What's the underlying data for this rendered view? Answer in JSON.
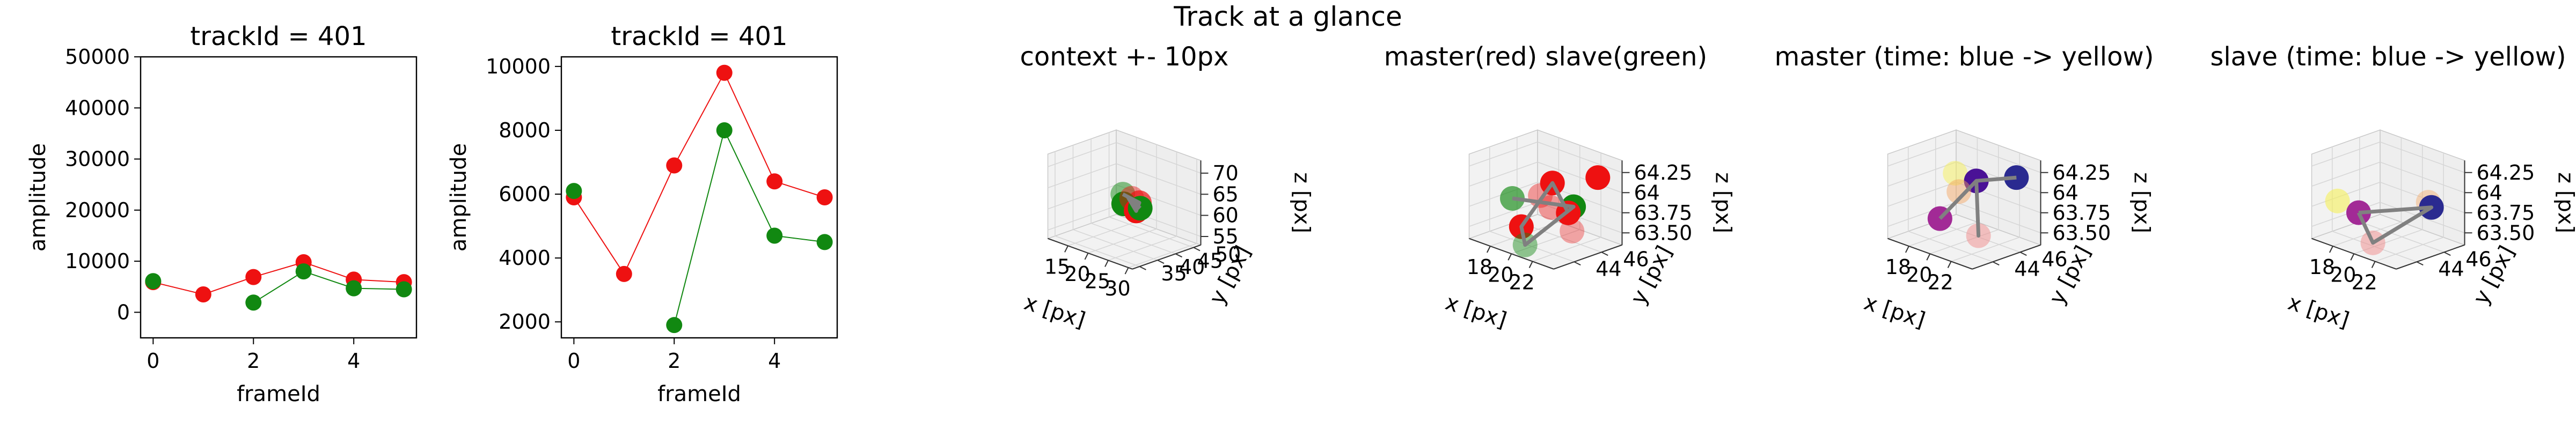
{
  "figure": {
    "suptitle": "Track at a glance"
  },
  "colors": {
    "master": "#ee1111",
    "slave": "#118811",
    "frame": "#000000",
    "pane": "#f2f2f2",
    "grid": "#d6d6d6",
    "path": "#808080"
  },
  "chart_data": [
    {
      "id": "p1",
      "type": "line",
      "title": "trackId = 401",
      "xlabel": "frameId",
      "ylabel": "amplitude",
      "xlim": [
        -0.25,
        5.25
      ],
      "ylim": [
        -5000,
        50000
      ],
      "xticks": [
        0,
        2,
        4
      ],
      "yticks": [
        0,
        10000,
        20000,
        30000,
        40000,
        50000
      ],
      "series": [
        {
          "color": "#ee1111",
          "x": [
            0,
            1,
            2,
            3,
            4,
            5
          ],
          "values": [
            5900,
            3500,
            6900,
            9800,
            6400,
            5900
          ]
        },
        {
          "color": "#118811",
          "x": [
            0,
            2,
            3,
            4,
            5
          ],
          "values": [
            6100,
            1900,
            8000,
            4700,
            4500
          ],
          "broken_after_first": true
        }
      ]
    },
    {
      "id": "p2",
      "type": "line",
      "title": "trackId = 401",
      "xlabel": "frameId",
      "ylabel": "amplitude",
      "xlim": [
        -0.25,
        5.25
      ],
      "ylim": [
        1500,
        10300
      ],
      "xticks": [
        0,
        2,
        4
      ],
      "yticks": [
        2000,
        4000,
        6000,
        8000,
        10000
      ],
      "series": [
        {
          "color": "#ee1111",
          "x": [
            0,
            1,
            2,
            3,
            4,
            5
          ],
          "values": [
            5900,
            3500,
            6900,
            9800,
            6400,
            5900
          ]
        },
        {
          "color": "#118811",
          "x": [
            0,
            2,
            3,
            4,
            5
          ],
          "values": [
            6100,
            1900,
            8000,
            4700,
            4500
          ],
          "broken_after_first": true
        }
      ]
    },
    {
      "id": "p3",
      "type": "scatter3d",
      "title": "context +- 10px",
      "xlabel": "x [px]",
      "ylabel": "y [px]",
      "zlabel": "z [px]",
      "xlim": [
        10,
        31
      ],
      "ylim": [
        33,
        52
      ],
      "zlim": [
        53,
        73
      ],
      "xticks": [
        15,
        20,
        25,
        30
      ],
      "yticks": [
        35,
        40,
        45,
        50
      ],
      "zticks": [
        55,
        60,
        65,
        70
      ],
      "points": [
        {
          "x": 17,
          "y": 46,
          "z": 62,
          "color": "#118811",
          "alpha": 0.5
        },
        {
          "x": 19,
          "y": 44,
          "z": 61,
          "color": "#118811",
          "alpha": 1.0
        },
        {
          "x": 21,
          "y": 44,
          "z": 63,
          "color": "#ee1111",
          "alpha": 0.45
        },
        {
          "x": 22,
          "y": 45,
          "z": 62,
          "color": "#ee1111",
          "alpha": 0.7
        },
        {
          "x": 23,
          "y": 43,
          "z": 61,
          "color": "#ee1111",
          "alpha": 1.0
        },
        {
          "x": 24,
          "y": 43,
          "z": 62,
          "color": "#118811",
          "alpha": 1.0
        }
      ],
      "path": [
        {
          "x": 17,
          "y": 46,
          "z": 62
        },
        {
          "x": 22,
          "y": 45,
          "z": 62
        },
        {
          "x": 23,
          "y": 43,
          "z": 61
        },
        {
          "x": 20,
          "y": 44,
          "z": 63
        },
        {
          "x": 24,
          "y": 43,
          "z": 62
        }
      ]
    },
    {
      "id": "p4",
      "type": "scatter3d",
      "title": "master(red) slave(green)",
      "xlabel": "x [px]",
      "ylabel": "y [px]",
      "zlabel": "z [px]",
      "xlim": [
        16,
        24
      ],
      "ylim": [
        42.5,
        47.5
      ],
      "zlim": [
        63.35,
        64.4
      ],
      "xticks": [
        18,
        20,
        22
      ],
      "yticks": [
        44,
        46
      ],
      "zticks": [
        63.5,
        63.75,
        64.0,
        64.25
      ],
      "points": [
        {
          "x": 17.5,
          "y": 44.5,
          "z": 63.8,
          "color": "#118811",
          "alpha": 0.65
        },
        {
          "x": 19.0,
          "y": 44.0,
          "z": 63.55,
          "color": "#ee1111",
          "alpha": 1.0
        },
        {
          "x": 19.5,
          "y": 45.0,
          "z": 63.9,
          "color": "#ee1111",
          "alpha": 0.4
        },
        {
          "x": 20.0,
          "y": 45.5,
          "z": 64.05,
          "color": "#ee1111",
          "alpha": 1.0
        },
        {
          "x": 20.5,
          "y": 45.0,
          "z": 63.8,
          "color": "#ee1111",
          "alpha": 0.4
        },
        {
          "x": 20.0,
          "y": 43.5,
          "z": 63.4,
          "color": "#118811",
          "alpha": 0.45
        },
        {
          "x": 22.0,
          "y": 45.5,
          "z": 63.85,
          "color": "#118811",
          "alpha": 1.0
        },
        {
          "x": 21.5,
          "y": 45.5,
          "z": 63.75,
          "color": "#ee1111",
          "alpha": 1.0
        },
        {
          "x": 22.5,
          "y": 45.0,
          "z": 63.6,
          "color": "#ee1111",
          "alpha": 0.35
        },
        {
          "x": 23.0,
          "y": 46.5,
          "z": 64.2,
          "color": "#ee1111",
          "alpha": 1.0
        }
      ],
      "path": [
        {
          "x": 17.5,
          "y": 44.5,
          "z": 63.8
        },
        {
          "x": 22.0,
          "y": 45.5,
          "z": 63.85
        },
        {
          "x": 20.0,
          "y": 43.5,
          "z": 63.4
        },
        {
          "x": 19.0,
          "y": 44.0,
          "z": 63.55
        },
        {
          "x": 20.0,
          "y": 45.5,
          "z": 64.05
        },
        {
          "x": 21.5,
          "y": 45.5,
          "z": 63.75
        }
      ]
    },
    {
      "id": "p5",
      "type": "scatter3d",
      "title": "master (time: blue -> yellow)",
      "xlabel": "x [px]",
      "ylabel": "y [px]",
      "zlabel": "z [px]",
      "xlim": [
        16,
        24
      ],
      "ylim": [
        42.5,
        47.5
      ],
      "zlim": [
        63.35,
        64.4
      ],
      "xticks": [
        18,
        20,
        22
      ],
      "yticks": [
        44,
        46
      ],
      "zticks": [
        63.5,
        63.75,
        64.0,
        64.25
      ],
      "points": [
        {
          "x": 18.5,
          "y": 45.5,
          "z": 64.1,
          "color": "#f5f05a",
          "alpha": 0.5
        },
        {
          "x": 19.5,
          "y": 45.0,
          "z": 63.95,
          "color": "#f5a25a",
          "alpha": 0.45
        },
        {
          "x": 19.0,
          "y": 44.0,
          "z": 63.65,
          "color": "#a22a96",
          "alpha": 1.0
        },
        {
          "x": 20.5,
          "y": 45.5,
          "z": 64.1,
          "color": "#4a1296",
          "alpha": 1.0
        },
        {
          "x": 22.0,
          "y": 44.5,
          "z": 63.55,
          "color": "#f08a8a",
          "alpha": 0.5
        },
        {
          "x": 23.0,
          "y": 46.5,
          "z": 64.2,
          "color": "#2a2a90",
          "alpha": 1.0
        }
      ],
      "path": [
        {
          "x": 19.0,
          "y": 44.0,
          "z": 63.65
        },
        {
          "x": 20.5,
          "y": 45.5,
          "z": 64.1
        },
        {
          "x": 22.0,
          "y": 44.5,
          "z": 63.55
        },
        {
          "x": 20.5,
          "y": 45.5,
          "z": 64.1
        },
        {
          "x": 23.0,
          "y": 46.5,
          "z": 64.2
        }
      ]
    },
    {
      "id": "p6",
      "type": "scatter3d",
      "title": "slave (time: blue -> yellow)",
      "xlabel": "x [px]",
      "ylabel": "y [px]",
      "zlabel": "z [px]",
      "xlim": [
        16,
        24
      ],
      "ylim": [
        42.5,
        47.5
      ],
      "zlim": [
        63.35,
        64.4
      ],
      "xticks": [
        18,
        20,
        22
      ],
      "yticks": [
        44,
        46
      ],
      "zticks": [
        63.5,
        63.75,
        64.0,
        64.25
      ],
      "points": [
        {
          "x": 16.5,
          "y": 44.0,
          "z": 63.75,
          "color": "#f5f05a",
          "alpha": 0.6
        },
        {
          "x": 18.5,
          "y": 44.0,
          "z": 63.7,
          "color": "#a22a96",
          "alpha": 1.0
        },
        {
          "x": 20.5,
          "y": 43.5,
          "z": 63.45,
          "color": "#f08a8a",
          "alpha": 0.5
        },
        {
          "x": 22.5,
          "y": 46.0,
          "z": 63.9,
          "color": "#f5a25a",
          "alpha": 0.4
        },
        {
          "x": 22.8,
          "y": 46.0,
          "z": 63.85,
          "color": "#2a2a90",
          "alpha": 1.0
        }
      ],
      "path": [
        {
          "x": 18.5,
          "y": 44.0,
          "z": 63.7
        },
        {
          "x": 20.5,
          "y": 43.5,
          "z": 63.45
        },
        {
          "x": 22.8,
          "y": 46.0,
          "z": 63.85
        },
        {
          "x": 18.5,
          "y": 44.0,
          "z": 63.7
        }
      ]
    }
  ]
}
